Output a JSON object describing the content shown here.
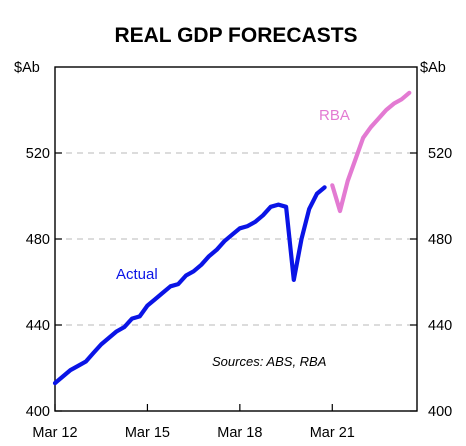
{
  "chart_data": {
    "type": "line",
    "title": "REAL GDP FORECASTS",
    "y_unit_left": "$Ab",
    "y_unit_right": "$Ab",
    "ylim": [
      400,
      560
    ],
    "yticks": [
      "400",
      "440",
      "480",
      "520"
    ],
    "ytick_values": [
      400,
      440,
      480,
      520
    ],
    "xlim": [
      2012.0,
      2023.75
    ],
    "xtick_labels": [
      "Mar 12",
      "Mar 15",
      "Mar 18",
      "Mar 21"
    ],
    "xtick_values": [
      2012.0,
      2015.0,
      2018.0,
      2021.0
    ],
    "grid": "horizontal dashed at 440, 480, 520",
    "series": [
      {
        "name": "Actual",
        "color": "#0a14e6",
        "x": [
          2012.0,
          2012.25,
          2012.5,
          2012.75,
          2013.0,
          2013.25,
          2013.5,
          2013.75,
          2014.0,
          2014.25,
          2014.5,
          2014.75,
          2015.0,
          2015.25,
          2015.5,
          2015.75,
          2016.0,
          2016.25,
          2016.5,
          2016.75,
          2017.0,
          2017.25,
          2017.5,
          2017.75,
          2018.0,
          2018.25,
          2018.5,
          2018.75,
          2019.0,
          2019.25,
          2019.5,
          2019.75,
          2020.0,
          2020.25,
          2020.5,
          2020.75,
          2021.0,
          2021.25
        ],
        "values": [
          413,
          416,
          419,
          421,
          423,
          427,
          431,
          434,
          437,
          439,
          443,
          444,
          449,
          452,
          455,
          458,
          459,
          463,
          465,
          468,
          472,
          475,
          479,
          482,
          485,
          486,
          488,
          491,
          495,
          496,
          495,
          461,
          480,
          494,
          501,
          504,
          null,
          null
        ]
      },
      {
        "name": "RBA",
        "color": "#e37ad2",
        "x": [
          2021.0,
          2021.25,
          2021.5,
          2021.75,
          2022.0,
          2022.25,
          2022.5,
          2022.75,
          2023.0,
          2023.25,
          2023.5
        ],
        "values": [
          505,
          493,
          507,
          517,
          527,
          532,
          536,
          540,
          543,
          545,
          548
        ]
      }
    ],
    "annotations": {
      "actual_label": "Actual",
      "rba_label": "RBA",
      "source": "Sources: ABS, RBA"
    }
  }
}
